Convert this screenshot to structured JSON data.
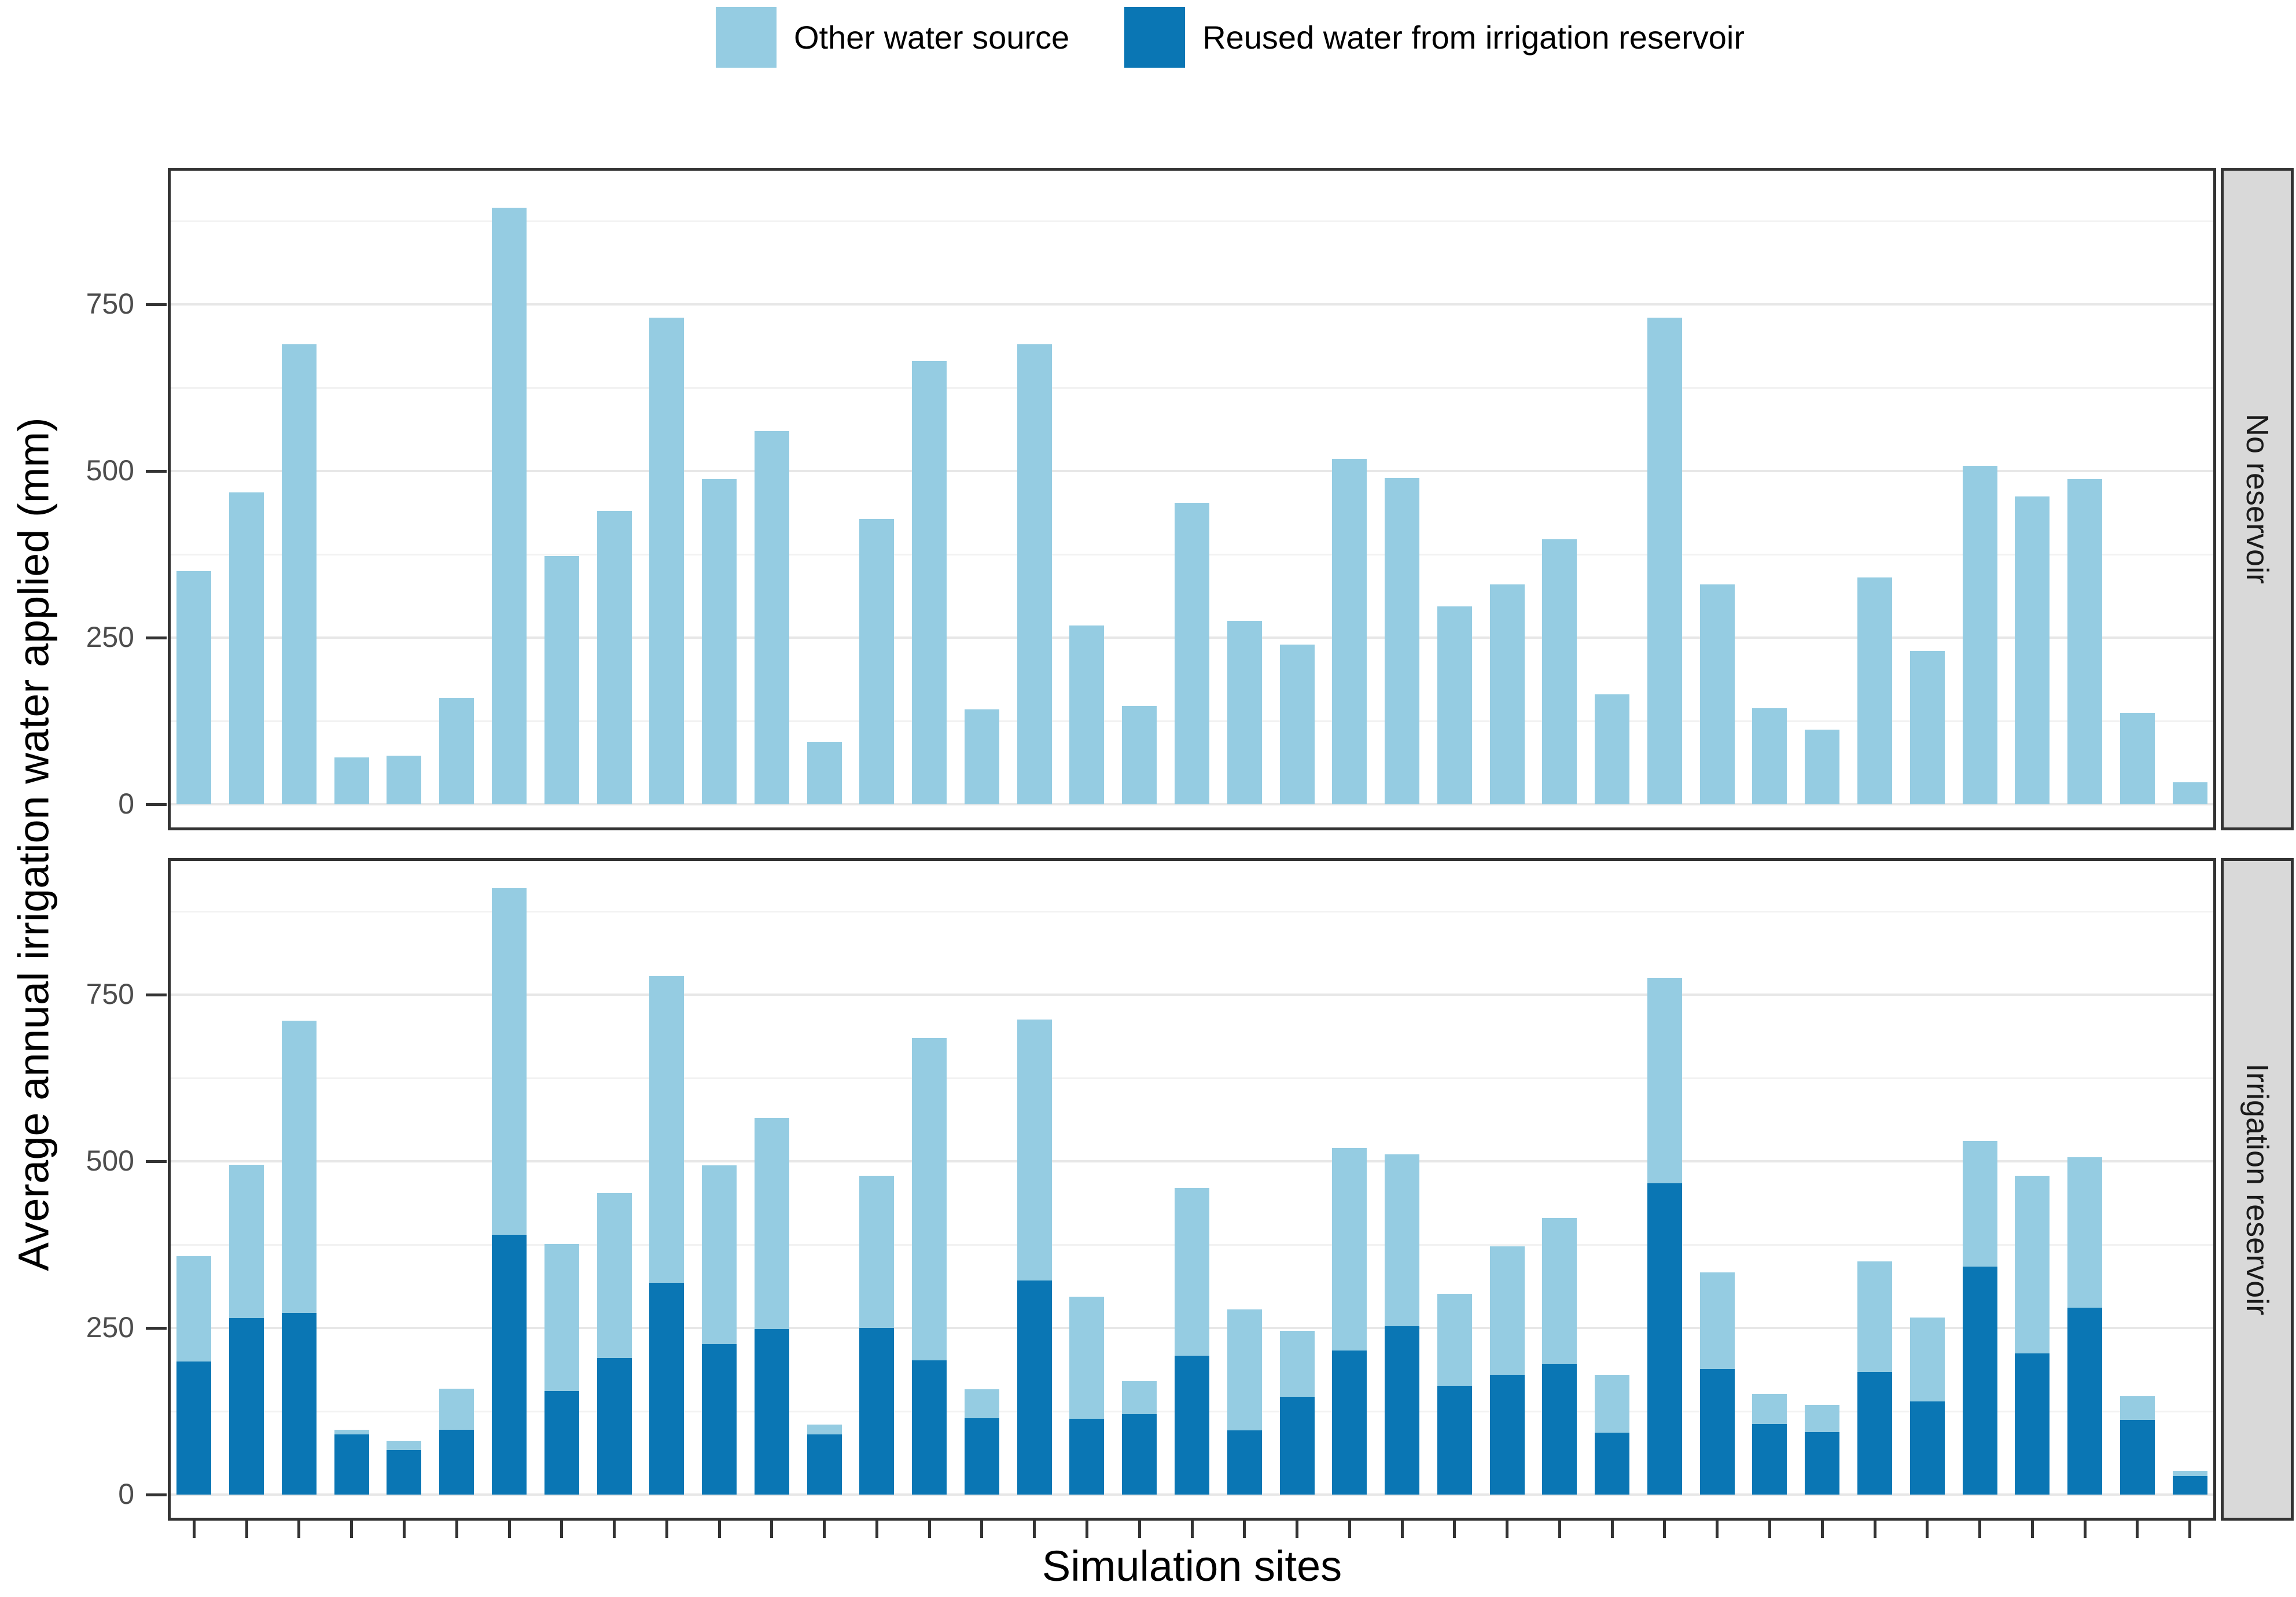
{
  "legend": {
    "items": [
      {
        "label": "Other water source",
        "color": "#95CCE2"
      },
      {
        "label": "Reused water from irrigation reservoir",
        "color": "#0A76B4"
      }
    ]
  },
  "axes": {
    "x_title": "Simulation sites",
    "y_title": "Average annual irrigation water applied (mm)"
  },
  "style": {
    "panel_border": "#333333",
    "grid_major": "#E7E7E7",
    "grid_minor": "#F2F2F2",
    "strip_bg": "#D9D9D9",
    "tick_label_color": "#4D4D4D",
    "light_blue": "#95CCE2",
    "dark_blue": "#0A76B4"
  },
  "chart_data": {
    "type": "bar",
    "stacked": true,
    "n_sites": 39,
    "x_tick_labels_shown": false,
    "xlabel": "Simulation sites",
    "ylabel": "Average annual irrigation water applied (mm)",
    "yticks": [
      0,
      250,
      500,
      750
    ],
    "minor_gridlines": [
      125,
      375,
      625,
      875
    ],
    "ylim": [
      0,
      955
    ],
    "grid": "horizontal major+minor",
    "legend_position": "top-center",
    "facet_layout": "rows, strip labels on right",
    "facets": [
      {
        "label": "No reservoir",
        "series": [
          {
            "name": "Reused water from irrigation reservoir",
            "color": "#0A76B4",
            "values": [
              0,
              0,
              0,
              0,
              0,
              0,
              0,
              0,
              0,
              0,
              0,
              0,
              0,
              0,
              0,
              0,
              0,
              0,
              0,
              0,
              0,
              0,
              0,
              0,
              0,
              0,
              0,
              0,
              0,
              0,
              0,
              0,
              0,
              0,
              0,
              0,
              0,
              0,
              0
            ]
          },
          {
            "name": "Other water source",
            "color": "#95CCE2",
            "values": [
              350,
              468,
              690,
              70,
              73,
              160,
              895,
              372,
              440,
              730,
              488,
              560,
              94,
              428,
              665,
              142,
              690,
              268,
              148,
              452,
              275,
              240,
              518,
              490,
              297,
              330,
              398,
              165,
              730,
              330,
              144,
              112,
              340,
              230,
              508,
              462,
              488,
              137,
              33
            ]
          }
        ]
      },
      {
        "label": "Irrigation reservoir",
        "series": [
          {
            "name": "Reused water from irrigation reservoir",
            "color": "#0A76B4",
            "values": [
              200,
              265,
              273,
              90,
              67,
              97,
              390,
              155,
              205,
              318,
              226,
              248,
              90,
              250,
              201,
              115,
              321,
              114,
              121,
              208,
              96,
              147,
              216,
              253,
              163,
              180,
              196,
              93,
              467,
              188,
              106,
              94,
              184,
              140,
              342,
              212,
              280,
              112,
              28
            ]
          },
          {
            "name": "Other water source",
            "color": "#95CCE2",
            "values": [
              158,
              230,
              438,
              7,
              14,
              62,
              520,
              221,
              247,
              460,
              268,
              317,
              15,
              228,
              484,
              43,
              392,
              183,
              49,
              252,
              182,
              99,
              304,
              257,
              138,
              192,
              219,
              87,
              308,
              145,
              45,
              41,
              166,
              126,
              188,
              266,
              226,
              36,
              8
            ]
          }
        ]
      }
    ]
  }
}
